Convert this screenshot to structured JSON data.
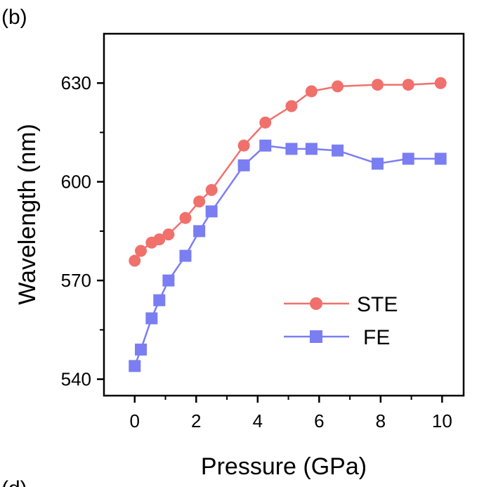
{
  "panel_labels": {
    "top": "(b)",
    "bottom": "(d)"
  },
  "colors": {
    "ste": "#f0706c",
    "fe": "#7a7ef2"
  },
  "chart_data": {
    "type": "line",
    "title": "",
    "xlabel": "Pressure (GPa)",
    "ylabel": "Wavelength (nm)",
    "xlim": [
      -1,
      10.7
    ],
    "ylim": [
      535,
      645
    ],
    "xticks": [
      0,
      2,
      4,
      6,
      8,
      10
    ],
    "yticks": [
      540,
      570,
      600,
      630
    ],
    "grid": false,
    "legend_position": "bottom-right",
    "series": [
      {
        "name": "STE",
        "marker": "circle",
        "color": "#f0706c",
        "x": [
          0,
          0.2,
          0.55,
          0.8,
          1.1,
          1.65,
          2.1,
          2.5,
          3.55,
          4.25,
          5.1,
          5.75,
          6.6,
          7.9,
          8.9,
          9.95
        ],
        "y": [
          576,
          579,
          581.5,
          582.5,
          584,
          589,
          594,
          597.5,
          611,
          618,
          623,
          627.5,
          629,
          629.5,
          629.5,
          630
        ]
      },
      {
        "name": "FE",
        "marker": "square",
        "color": "#7a7ef2",
        "x": [
          0,
          0.2,
          0.55,
          0.8,
          1.1,
          1.65,
          2.1,
          2.5,
          3.55,
          4.25,
          5.1,
          5.75,
          6.6,
          7.9,
          8.9,
          9.95
        ],
        "y": [
          544,
          549,
          558.5,
          564,
          570,
          577.5,
          585,
          591,
          605,
          611,
          610,
          610,
          609.5,
          605.5,
          607,
          607
        ]
      }
    ]
  }
}
